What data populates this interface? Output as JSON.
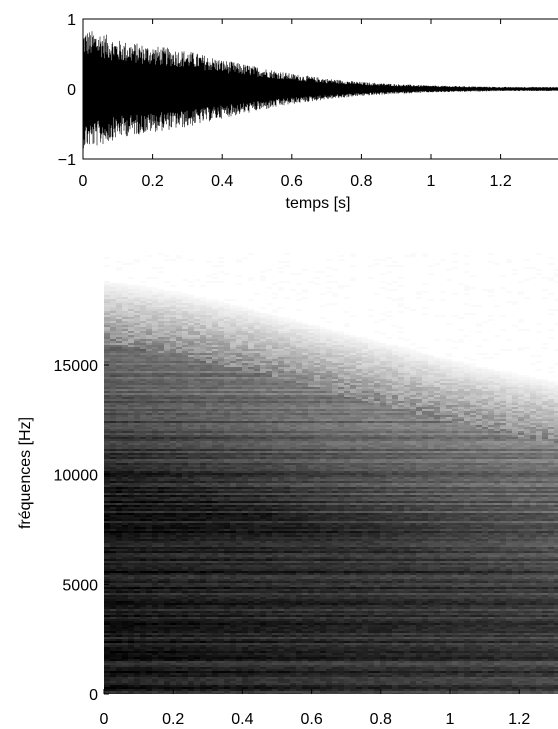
{
  "chart_data": [
    {
      "type": "line",
      "series": [
        {
          "values": [],
          "description_envelope": {
            "t": [
              0,
              0.05,
              0.1,
              0.2,
              0.3,
              0.4,
              0.5,
              0.6,
              0.7,
              0.8,
              0.9,
              1.0,
              1.1,
              1.2,
              1.3
            ],
            "amplitude": [
              0.85,
              0.82,
              0.7,
              0.62,
              0.55,
              0.42,
              0.32,
              0.22,
              0.15,
              0.1,
              0.07,
              0.05,
              0.04,
              0.03,
              0.03
            ]
          }
        }
      ],
      "xlabel": "temps [s]",
      "ylabel": "",
      "xlim": [
        0,
        1.3
      ],
      "ylim": [
        -1,
        1
      ],
      "xticks": [
        "0",
        "0.2",
        "0.4",
        "0.6",
        "0.8",
        "1",
        "1.2"
      ],
      "yticks": [
        "−1",
        "0",
        "1"
      ],
      "line_color": "#000000",
      "grid": false
    },
    {
      "type": "heatmap",
      "xlabel": "",
      "ylabel": "fréquences [Hz]",
      "xlim": [
        0,
        1.3
      ],
      "ylim": [
        0,
        18000
      ],
      "xticks": [
        "0",
        "0.2",
        "0.4",
        "0.6",
        "0.8",
        "1",
        "1.2"
      ],
      "yticks": [
        "0",
        "5000",
        "10000",
        "15000"
      ],
      "colormap": "gray_reversed",
      "energy_cutoff_hz": {
        "t": [
          0,
          0.2,
          0.4,
          0.6,
          0.8,
          1.0,
          1.2,
          1.3
        ],
        "f": [
          17500,
          17000,
          16300,
          15500,
          14700,
          13900,
          13200,
          12900
        ]
      }
    }
  ]
}
